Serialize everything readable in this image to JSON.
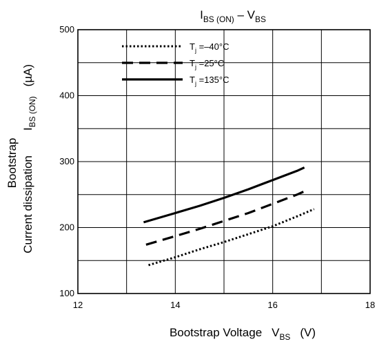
{
  "chart_data": {
    "type": "line",
    "title": {
      "main": "I",
      "main_sub": "BS (ON)",
      "sep": " – ",
      "var": "V",
      "var_sub": "BS"
    },
    "xlabel": {
      "text": "Bootstrap Voltage",
      "var": "V",
      "var_sub": "BS",
      "unit": "(V)"
    },
    "ylabel": {
      "line1": "Bootstrap",
      "line2": "Current dissipation",
      "var": "I",
      "var_sub": "BS (ON)",
      "unit": "(µA)"
    },
    "xlim": [
      12,
      18
    ],
    "ylim": [
      100,
      500
    ],
    "xticks": [
      12,
      14,
      16,
      18
    ],
    "yticks": [
      100,
      200,
      300,
      400,
      500
    ],
    "grid": true,
    "series": [
      {
        "name": "T",
        "name_sub": "j",
        "name_rest": " =–40°C",
        "style": "dotted",
        "x": [
          13.45,
          14.0,
          14.5,
          15.0,
          15.5,
          16.0,
          16.5,
          16.85
        ],
        "y": [
          143,
          155,
          167,
          178,
          190,
          202,
          217,
          228
        ]
      },
      {
        "name": "T",
        "name_sub": "j",
        "name_rest": " =25°C",
        "style": "dashed",
        "x": [
          13.4,
          14.0,
          14.5,
          15.0,
          15.5,
          16.0,
          16.5,
          16.65
        ],
        "y": [
          174,
          187,
          198,
          210,
          222,
          236,
          250,
          255
        ]
      },
      {
        "name": "T",
        "name_sub": "j",
        "name_rest": " =135°C",
        "style": "solid",
        "x": [
          13.35,
          14.0,
          14.5,
          15.0,
          15.5,
          16.0,
          16.5,
          16.65
        ],
        "y": [
          208,
          222,
          233,
          245,
          258,
          272,
          286,
          291
        ]
      }
    ],
    "legend_position": "top-left"
  }
}
